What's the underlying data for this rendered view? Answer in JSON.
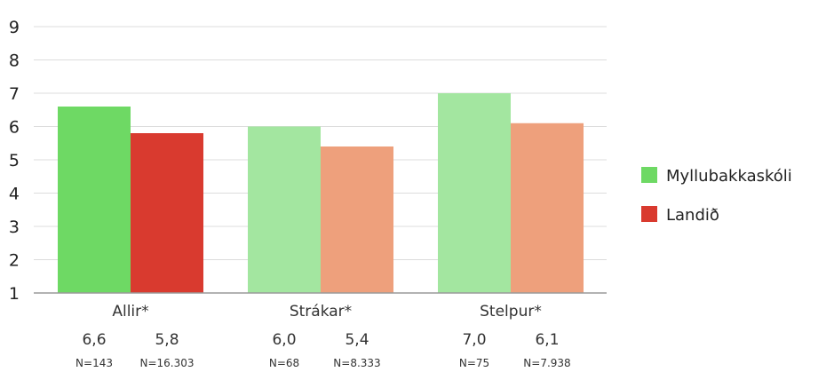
{
  "chart_data": {
    "type": "bar",
    "title": "",
    "xlabel": "",
    "ylabel": "",
    "ylim": [
      1,
      9
    ],
    "yticks": [
      "1",
      "2",
      "3",
      "4",
      "5",
      "6",
      "7",
      "8",
      "9"
    ],
    "grid": true,
    "legend_position": "right",
    "categories": [
      "Allir*",
      "Strákar*",
      "Stelpur*"
    ],
    "series": [
      {
        "name": "Myllubakkaskóli",
        "values": [
          6.6,
          6.0,
          7.0
        ],
        "value_labels": [
          "6,6",
          "6,0",
          "7,0"
        ],
        "n_labels": [
          "N=143",
          "N=68",
          "N=75"
        ],
        "colors": [
          "#6ed964",
          "#a3e6a0",
          "#a3e6a0"
        ],
        "legend_color": "#6ed964"
      },
      {
        "name": "Landið",
        "values": [
          5.8,
          5.4,
          6.1
        ],
        "value_labels": [
          "5,8",
          "5,4",
          "6,1"
        ],
        "n_labels": [
          "N=16.303",
          "N=8.333",
          "N=7.938"
        ],
        "colors": [
          "#d93a2f",
          "#eea07c",
          "#eea07c"
        ],
        "legend_color": "#d93a2f"
      }
    ]
  }
}
